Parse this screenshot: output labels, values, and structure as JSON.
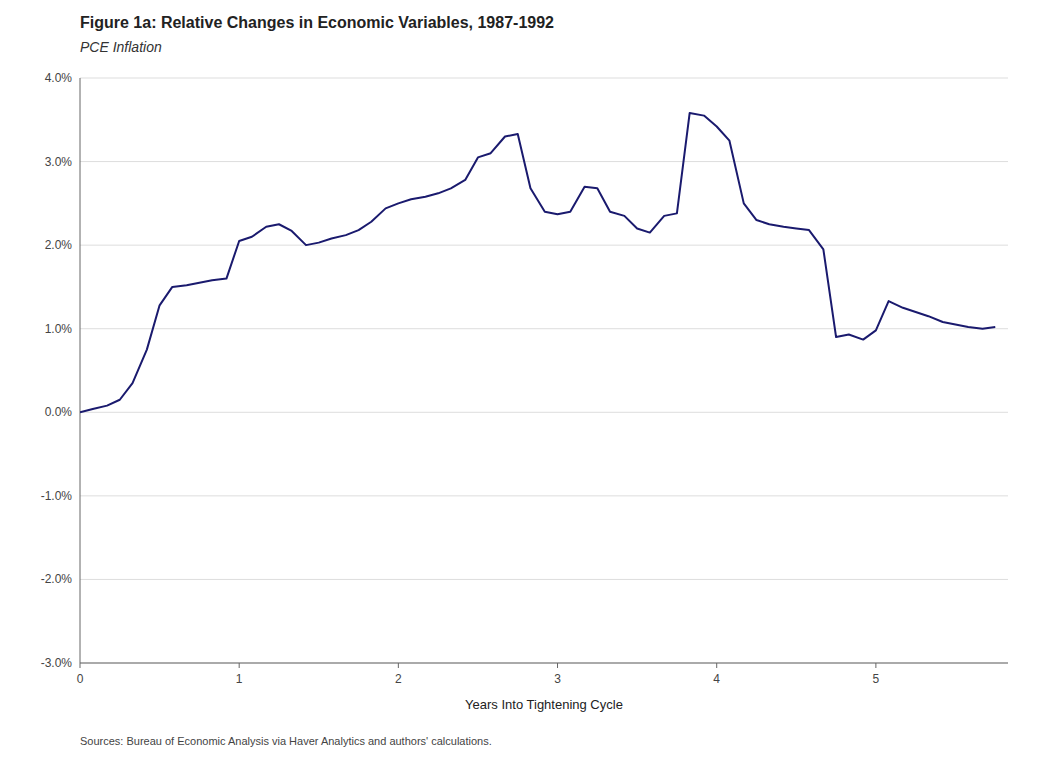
{
  "chart_data": {
    "type": "line",
    "title": "Figure 1a: Relative Changes in Economic Variables, 1987-1992",
    "subtitle": "PCE Inflation",
    "xlabel": "Years Into Tightening Cycle",
    "source": "Sources: Bureau of Economic Analysis via Haver Analytics and authors' calculations.",
    "color": "#1a1a6e",
    "grid": true,
    "xlim": [
      0,
      5.83
    ],
    "ylim": [
      -3.0,
      4.0
    ],
    "xticks": [
      0,
      1,
      2,
      3,
      4,
      5
    ],
    "yticks": [
      {
        "value": -3.0,
        "label": "-3.0%"
      },
      {
        "value": -2.0,
        "label": "-2.0%"
      },
      {
        "value": -1.0,
        "label": "-1.0%"
      },
      {
        "value": 0.0,
        "label": "0.0%"
      },
      {
        "value": 1.0,
        "label": "1.0%"
      },
      {
        "value": 2.0,
        "label": "2.0%"
      },
      {
        "value": 3.0,
        "label": "3.0%"
      },
      {
        "value": 4.0,
        "label": "4.0%"
      }
    ],
    "x": [
      0.0,
      0.08,
      0.17,
      0.25,
      0.33,
      0.42,
      0.5,
      0.58,
      0.67,
      0.75,
      0.83,
      0.92,
      1.0,
      1.08,
      1.17,
      1.25,
      1.33,
      1.42,
      1.5,
      1.58,
      1.67,
      1.75,
      1.83,
      1.92,
      2.0,
      2.08,
      2.17,
      2.25,
      2.33,
      2.42,
      2.5,
      2.58,
      2.67,
      2.75,
      2.83,
      2.92,
      3.0,
      3.08,
      3.17,
      3.25,
      3.33,
      3.42,
      3.5,
      3.58,
      3.67,
      3.75,
      3.83,
      3.92,
      4.0,
      4.08,
      4.17,
      4.25,
      4.33,
      4.42,
      4.5,
      4.58,
      4.67,
      4.75,
      4.83,
      4.92,
      5.0,
      5.08,
      5.17,
      5.25,
      5.33,
      5.42,
      5.5,
      5.58,
      5.67,
      5.75
    ],
    "values": [
      0.0,
      0.04,
      0.08,
      0.15,
      0.35,
      0.75,
      1.28,
      1.5,
      1.52,
      1.55,
      1.58,
      1.6,
      2.05,
      2.1,
      2.22,
      2.25,
      2.17,
      2.0,
      2.03,
      2.08,
      2.12,
      2.18,
      2.28,
      2.44,
      2.5,
      2.55,
      2.58,
      2.62,
      2.68,
      2.78,
      3.05,
      3.1,
      3.3,
      3.33,
      2.68,
      2.4,
      2.37,
      2.4,
      2.7,
      2.68,
      2.4,
      2.35,
      2.2,
      2.15,
      2.35,
      2.38,
      3.58,
      3.55,
      3.42,
      3.25,
      2.5,
      2.3,
      2.25,
      2.22,
      2.2,
      2.18,
      1.95,
      0.9,
      0.93,
      0.87,
      0.98,
      1.33,
      1.25,
      1.2,
      1.15,
      1.08,
      1.05,
      1.02,
      1.0,
      1.02
    ]
  }
}
